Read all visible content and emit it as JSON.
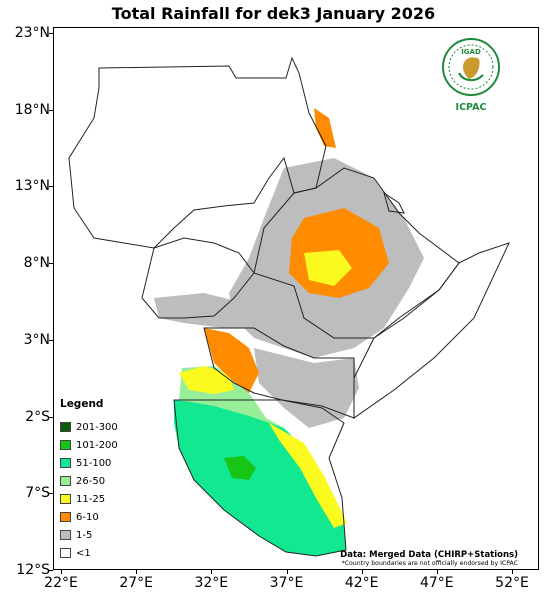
{
  "title": "Total Rainfall for dek3 January 2026",
  "y_ticks": [
    {
      "label": "23°N",
      "lat": 23
    },
    {
      "label": "18°N",
      "lat": 18
    },
    {
      "label": "13°N",
      "lat": 13
    },
    {
      "label": "8°N",
      "lat": 8
    },
    {
      "label": "3°N",
      "lat": 3
    },
    {
      "label": "2°S",
      "lat": -2
    },
    {
      "label": "7°S",
      "lat": -7
    },
    {
      "label": "12°S",
      "lat": -12
    }
  ],
  "x_ticks": [
    {
      "label": "22°E",
      "lon": 22
    },
    {
      "label": "27°E",
      "lon": 27
    },
    {
      "label": "32°E",
      "lon": 32
    },
    {
      "label": "37°E",
      "lon": 37
    },
    {
      "label": "42°E",
      "lon": 42
    },
    {
      "label": "47°E",
      "lon": 47
    },
    {
      "label": "52°E",
      "lon": 52
    }
  ],
  "legend": {
    "title": "Legend",
    "items": [
      {
        "label": "201-300",
        "color": "#0a5a0a"
      },
      {
        "label": "101-200",
        "color": "#16c516"
      },
      {
        "label": "51-100",
        "color": "#12e890"
      },
      {
        "label": "26-50",
        "color": "#98ee98"
      },
      {
        "label": "11-25",
        "color": "#fafa1e"
      },
      {
        "label": "6-10",
        "color": "#ff8c00"
      },
      {
        "label": "1-5",
        "color": "#bdbdbd"
      },
      {
        "label": "<1",
        "color": "#ffffff"
      }
    ]
  },
  "credit": {
    "source": "Data: Merged Data (CHIRP+Stations)",
    "note": "*Country boundaries are not officially endorsed by ICPAC"
  },
  "logo": {
    "badge_text": "IGAD",
    "brand_text": "ICPAC"
  }
}
